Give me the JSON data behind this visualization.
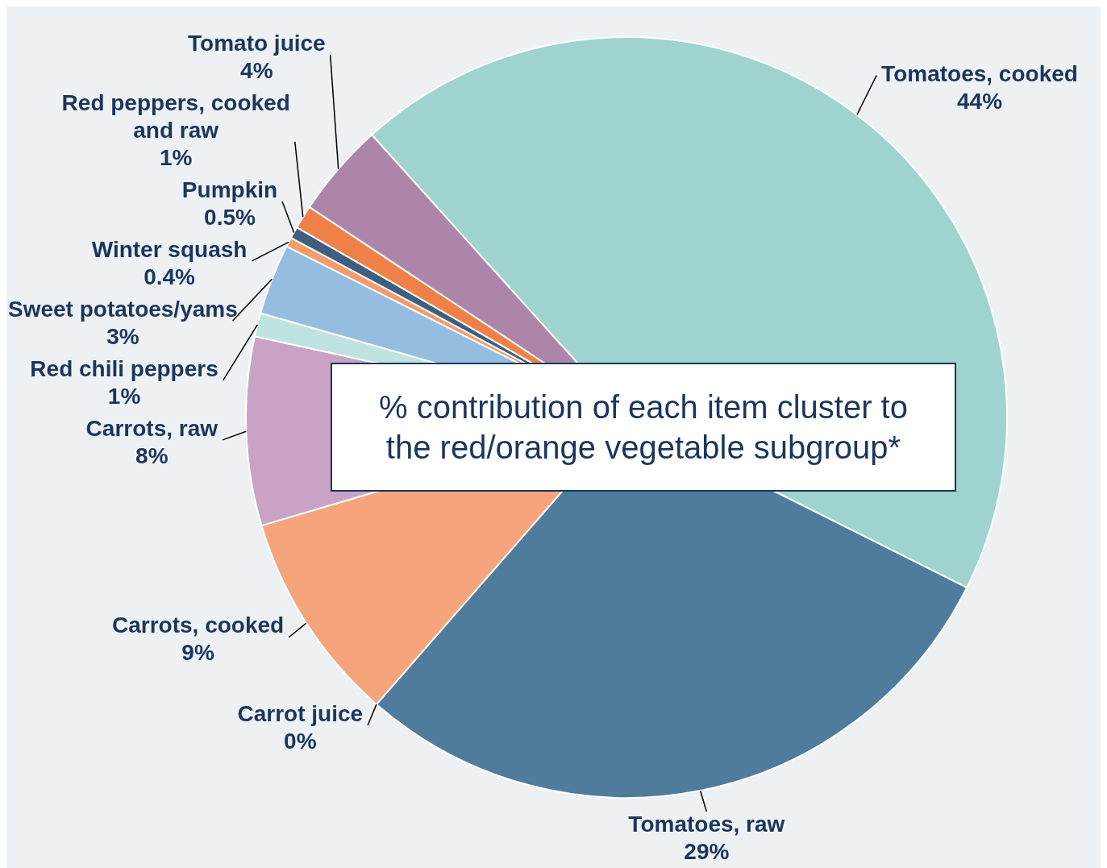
{
  "chart_data": {
    "type": "pie",
    "title": "% contribution of each item cluster to the red/orange vegetable subgroup*",
    "categories": [
      "Tomatoes, cooked",
      "Tomatoes, raw",
      "Carrot juice",
      "Carrots, cooked",
      "Carrots, raw",
      "Red chili peppers",
      "Sweet potatoes/yams",
      "Winter squash",
      "Pumpkin",
      "Red peppers, cooked and raw",
      "Tomato juice"
    ],
    "values": [
      44,
      29,
      0,
      9,
      8,
      1,
      3,
      0.4,
      0.5,
      1,
      4
    ],
    "colors": [
      "#9fd3cf",
      "#4f7c9c",
      "#7fb0c8",
      "#f6a47c",
      "#c9a3c6",
      "#bfe3e0",
      "#94bde0",
      "#f59a6a",
      "#3e5f80",
      "#ef8148",
      "#ad85a8"
    ],
    "value_labels": [
      "44%",
      "29%",
      "0%",
      "9%",
      "8%",
      "1%",
      "3%",
      "0.4%",
      "0.5%",
      "1%",
      "4%"
    ]
  }
}
